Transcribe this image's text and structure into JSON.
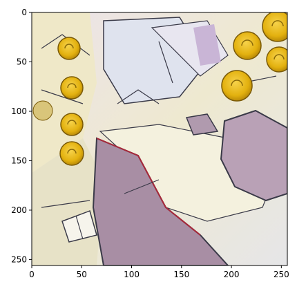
{
  "image": {
    "description_terms": [
      "stylized painting",
      "gold coins",
      "lavender stones",
      "cream ground"
    ],
    "palette": {
      "cream": "#f1ecd2",
      "pale_blue": "#dfe4ee",
      "lavender": "#b9a6c2",
      "mauve": "#a88ea4",
      "gold": "#e8b71a",
      "ink": "#3a3a48",
      "red_accent": "#a8283a"
    }
  },
  "axes": {
    "x": {
      "ticks": [
        0,
        50,
        100,
        150,
        200,
        250
      ],
      "labels": [
        "0",
        "50",
        "100",
        "150",
        "200",
        "250"
      ],
      "range": [
        0,
        256
      ]
    },
    "y": {
      "ticks": [
        0,
        50,
        100,
        150,
        200,
        250
      ],
      "labels": [
        "0",
        "50",
        "100",
        "150",
        "200",
        "250"
      ],
      "range": [
        0,
        256
      ]
    }
  }
}
